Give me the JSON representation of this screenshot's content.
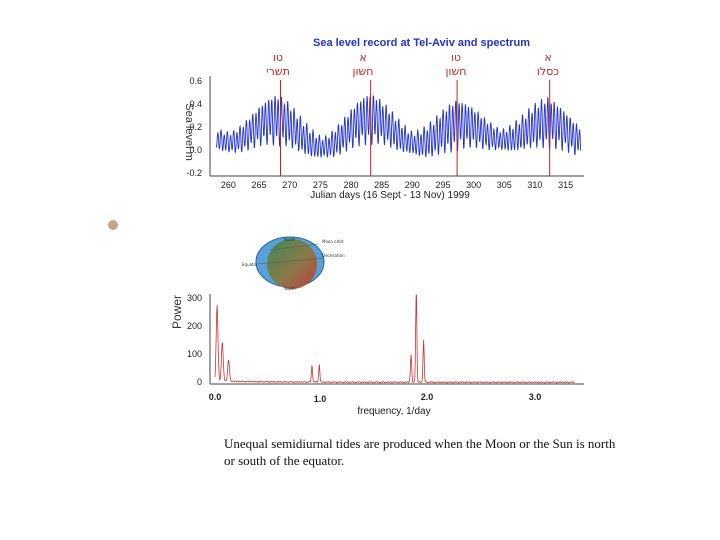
{
  "top_chart": {
    "title": "Sea level record at Tel-Aviv and spectrum",
    "xlabel": "Julian days (16 Sept - 13 Nov) 1999",
    "ylabel": "Sea level m",
    "y_ticks": [
      "0.6",
      "0.4",
      "0.2",
      "0.0",
      "-0.2"
    ],
    "x_ticks": [
      "260",
      "265",
      "270",
      "275",
      "280",
      "285",
      "290",
      "295",
      "300",
      "305",
      "310",
      "315"
    ],
    "moon_phase_markers": [
      {
        "line1": "טו",
        "line2": "תשרי",
        "day": 268.5
      },
      {
        "line1": "א",
        "line2": "חשון",
        "day": 283.2
      },
      {
        "line1": "טו",
        "line2": "חשון",
        "day": 297.3
      },
      {
        "line1": "א",
        "line2": "כסלו",
        "day": 312.4
      }
    ]
  },
  "bottom_chart": {
    "xlabel": "frequency, 1/day",
    "ylabel": "Power",
    "y_ticks": [
      "300",
      "200",
      "100",
      "0"
    ],
    "x_ticks": [
      "0.0",
      "1.0",
      "2.0",
      "3.0"
    ]
  },
  "diagram_labels": {
    "north": "North",
    "moon_orbit": "Moon orbit",
    "declination": "Declination",
    "equator": "Equator",
    "south": "South"
  },
  "caption": "Unequal semidiurnal tides are produced when the Moon or the Sun is north or south of the equator.",
  "chart_data": [
    {
      "type": "line",
      "title": "Sea level record at Tel-Aviv and spectrum",
      "xlabel": "Julian days (16 Sept - 13 Nov) 1999",
      "ylabel": "Sea level m",
      "xlim": [
        257,
        318
      ],
      "ylim": [
        -0.2,
        0.6
      ],
      "series": [
        {
          "color": "#2233cc",
          "description": "hourly sea level, semidiurnal oscillation with fortnightly modulation",
          "envelope_peaks_day": [
            268,
            283,
            297,
            312
          ],
          "mean_level_range": [
            0.0,
            0.33
          ]
        }
      ],
      "vlines_day": [
        268.5,
        283.2,
        297.3,
        312.4
      ]
    },
    {
      "type": "line",
      "xlabel": "frequency, 1/day",
      "ylabel": "Power",
      "xlim": [
        0.0,
        3.5
      ],
      "ylim": [
        0,
        320
      ],
      "series": [
        {
          "color": "#cc3333",
          "peaks": [
            {
              "x": 0.02,
              "y": 270
            },
            {
              "x": 0.07,
              "y": 140
            },
            {
              "x": 0.13,
              "y": 75
            },
            {
              "x": 0.93,
              "y": 60
            },
            {
              "x": 1.0,
              "y": 62
            },
            {
              "x": 1.88,
              "y": 100
            },
            {
              "x": 1.93,
              "y": 330
            },
            {
              "x": 2.0,
              "y": 150
            }
          ]
        }
      ]
    }
  ]
}
